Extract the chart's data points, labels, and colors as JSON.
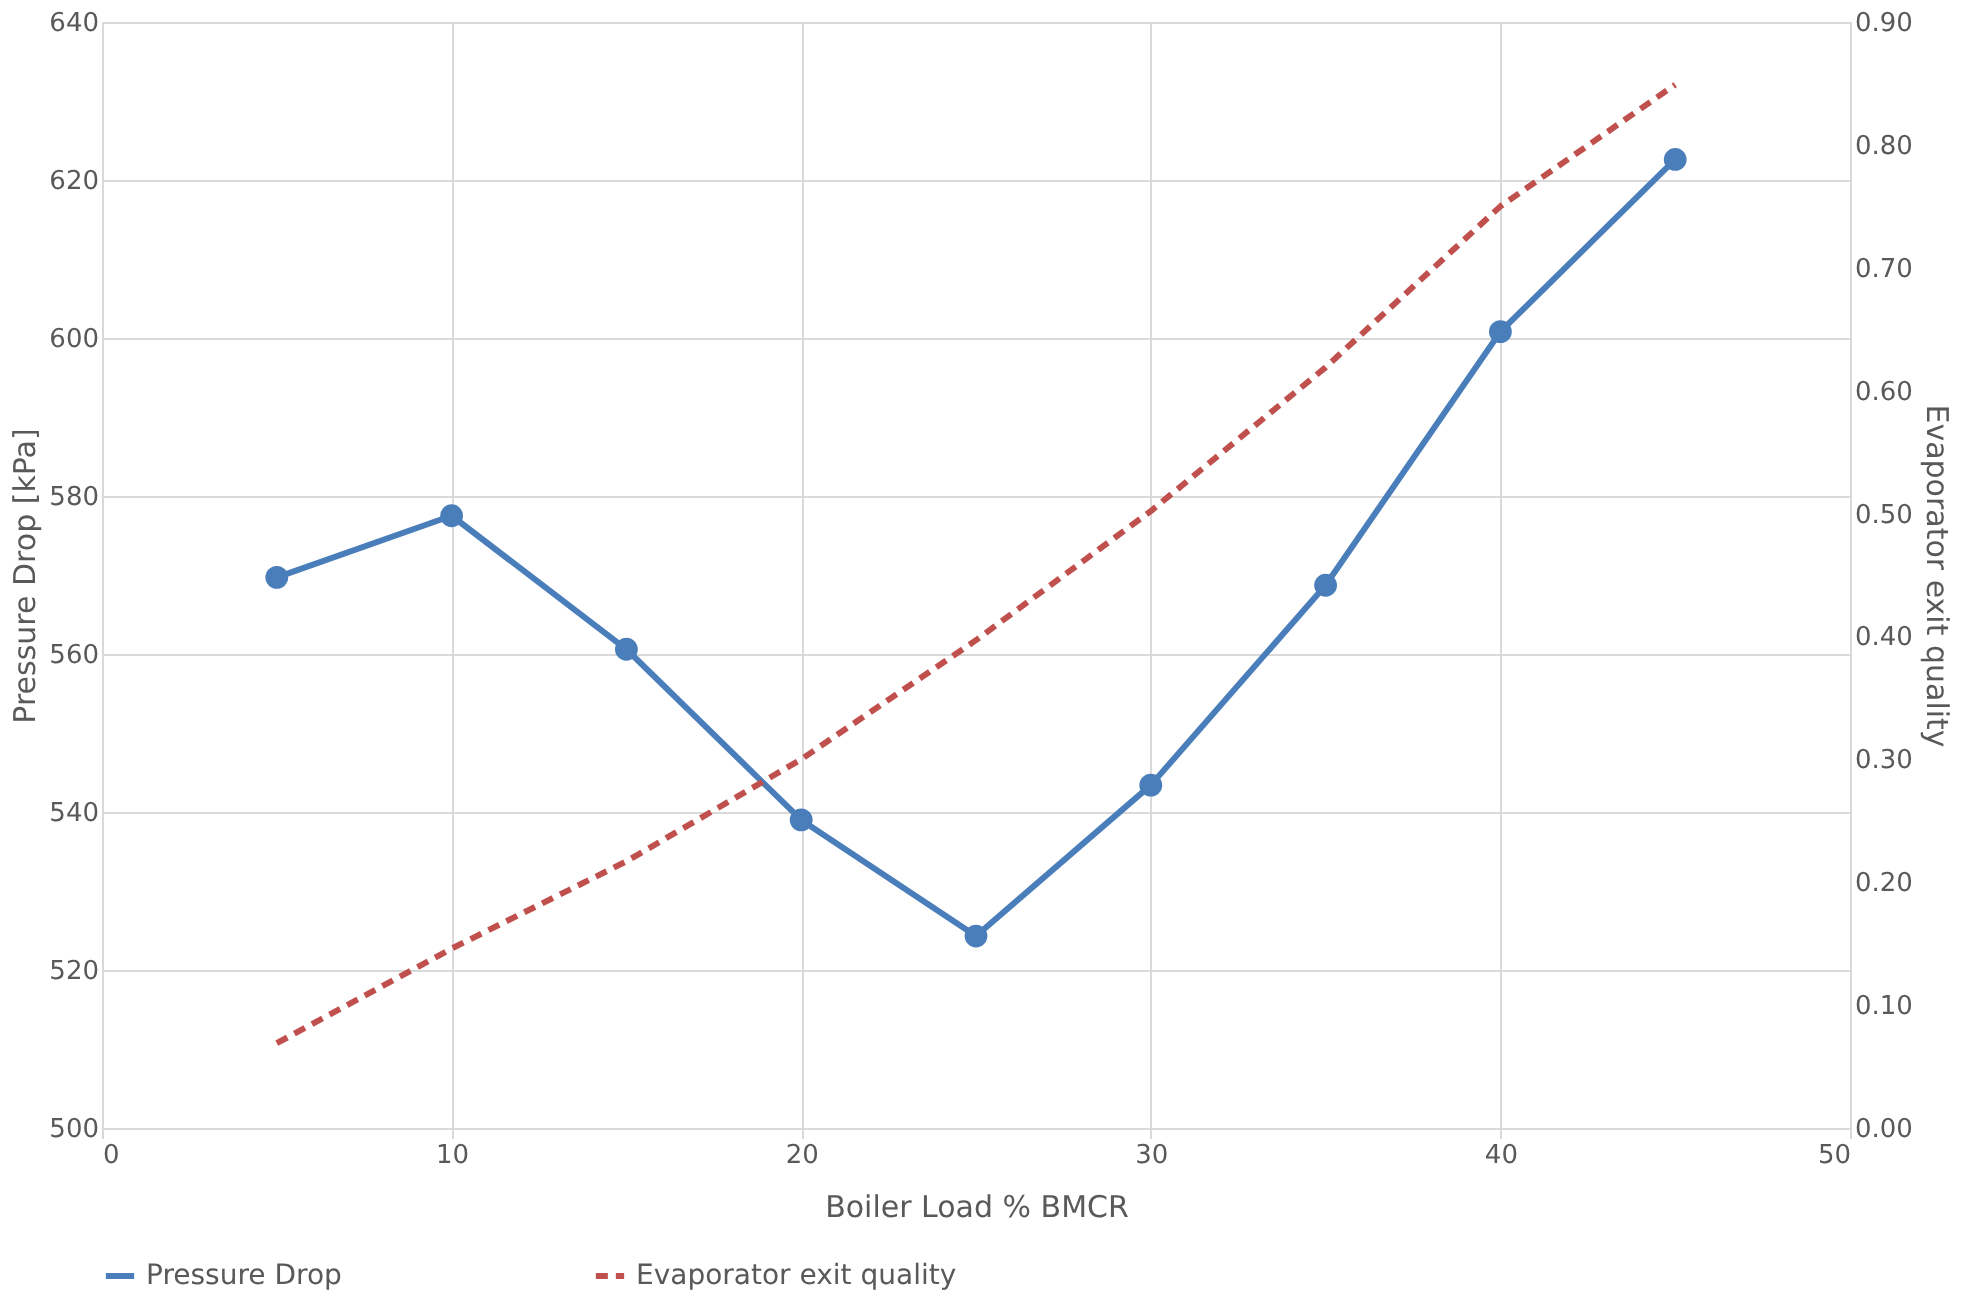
{
  "chart_data": {
    "type": "line",
    "xlabel": "Boiler Load % BMCR",
    "ylabel": "Pressure Drop [kPa]",
    "y2label": "Evaporator exit quality",
    "x": [
      5,
      10,
      15,
      20,
      25,
      30,
      35,
      40,
      45
    ],
    "series": [
      {
        "name": "Pressure Drop",
        "color": "#4a7ebb",
        "values": [
          569.7,
          577.5,
          560.6,
          539.0,
          524.3,
          543.4,
          568.7,
          600.8,
          622.6
        ],
        "marker": "circle",
        "line_style": "solid"
      },
      {
        "name": "Evaporator exit quality",
        "color": "#c0504d",
        "values": [
          0.069,
          0.146,
          0.217,
          0.3,
          0.397,
          0.502,
          0.619,
          0.75,
          0.849
        ],
        "axis": "y2",
        "marker": "none",
        "line_style": "dashed"
      }
    ],
    "xlim": [
      0,
      50
    ],
    "xticks": [
      0,
      10,
      20,
      30,
      40,
      50
    ],
    "ylim": [
      500,
      640
    ],
    "yticks": [
      500,
      520,
      540,
      560,
      580,
      600,
      620,
      640
    ],
    "y2lim": [
      0,
      0.9
    ],
    "y2ticks": [
      {
        "value": 0,
        "label": "0.00"
      },
      {
        "value": 0.1,
        "label": "0.10"
      },
      {
        "value": 0.2,
        "label": "0.20"
      },
      {
        "value": 0.3,
        "label": "0.30"
      },
      {
        "value": 0.4,
        "label": "0.40"
      },
      {
        "value": 0.5,
        "label": "0.50"
      },
      {
        "value": 0.6,
        "label": "0.60"
      },
      {
        "value": 0.7,
        "label": "0.70"
      },
      {
        "value": 0.8,
        "label": "0.80"
      },
      {
        "value": 0.9,
        "label": "0.90"
      }
    ],
    "grid": true,
    "legend": "bottom"
  }
}
